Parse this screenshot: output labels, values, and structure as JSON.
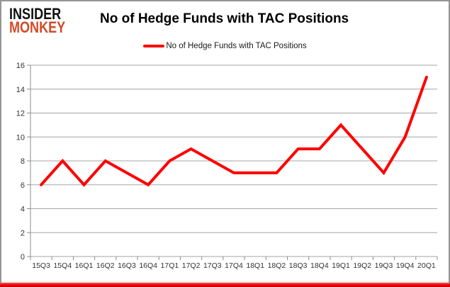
{
  "logo": {
    "line1": "INSIDER",
    "line2": "MONKEY"
  },
  "header": {
    "title": "No of Hedge Funds with TAC Positions"
  },
  "legend": {
    "label": "No of Hedge Funds with TAC Positions"
  },
  "colors": {
    "series": "#fe0000",
    "grid": "#a6a6a6",
    "axis": "#8c8c8c",
    "tick_text": "#333333",
    "logo_accent": "#d14b28",
    "bottom_bar": "#e80000",
    "card_border": "#969696"
  },
  "chart_data": {
    "type": "line",
    "title": "No of Hedge Funds with TAC Positions",
    "xlabel": "",
    "ylabel": "",
    "categories": [
      "15Q3",
      "15Q4",
      "16Q1",
      "16Q2",
      "16Q3",
      "16Q4",
      "17Q1",
      "17Q2",
      "17Q3",
      "17Q4",
      "18Q1",
      "18Q2",
      "18Q3",
      "18Q4",
      "19Q1",
      "19Q2",
      "19Q3",
      "19Q4",
      "20Q1"
    ],
    "series": [
      {
        "name": "No of Hedge Funds with TAC Positions",
        "color": "#fe0000",
        "values": [
          6,
          8,
          6,
          8,
          7,
          6,
          8,
          9,
          8,
          7,
          7,
          7,
          9,
          9,
          11,
          9,
          7,
          10,
          15
        ]
      }
    ],
    "ylim": [
      0,
      16
    ],
    "yticks": [
      0,
      2,
      4,
      6,
      8,
      10,
      12,
      14,
      16
    ],
    "grid": true,
    "legend_position": "top-center",
    "markers": false
  }
}
